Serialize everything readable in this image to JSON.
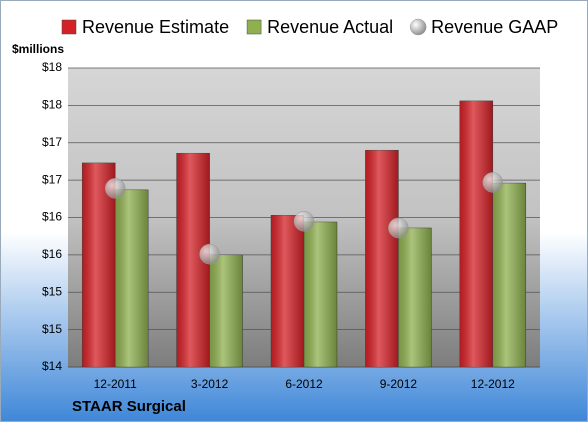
{
  "chart_data": {
    "type": "bar",
    "title": "STAAR Surgical",
    "y_label": "$millions",
    "categories": [
      "12-2011",
      "3-2012",
      "6-2012",
      "9-2012",
      "12-2012"
    ],
    "series": [
      {
        "name": "Revenue Estimate",
        "color": "#d42127",
        "values": [
          16.73,
          16.86,
          16.03,
          16.9,
          17.56
        ]
      },
      {
        "name": "Revenue Actual",
        "color": "#8fb04f",
        "values": [
          16.37,
          15.5,
          15.94,
          15.86,
          16.46
        ]
      },
      {
        "name": "Revenue GAAP",
        "color": "#c8c8c8",
        "type": "scatter",
        "values": [
          16.39,
          15.51,
          15.95,
          15.86,
          16.47
        ]
      }
    ],
    "ylim": [
      14,
      18
    ],
    "yticks": [
      {
        "value": 14,
        "label": "$14"
      },
      {
        "value": 14.5,
        "label": "$15"
      },
      {
        "value": 15,
        "label": "$15"
      },
      {
        "value": 15.5,
        "label": "$16"
      },
      {
        "value": 16,
        "label": "$16"
      },
      {
        "value": 16.5,
        "label": "$17"
      },
      {
        "value": 17,
        "label": "$17"
      },
      {
        "value": 17.5,
        "label": "$18"
      },
      {
        "value": 18,
        "label": "$18"
      }
    ],
    "grid": true
  }
}
